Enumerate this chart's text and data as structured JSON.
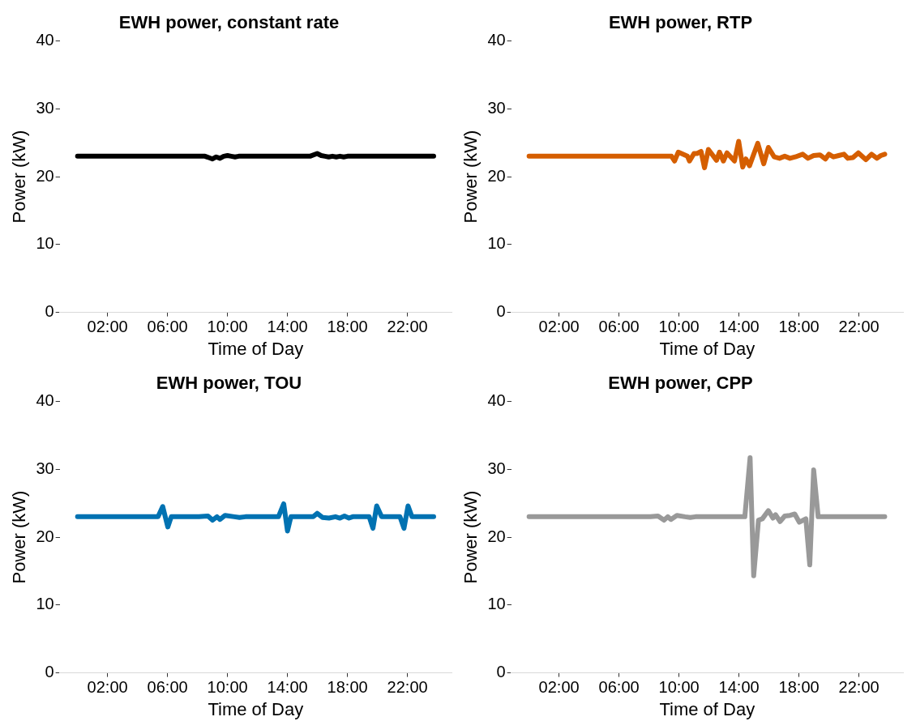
{
  "chart_data": [
    {
      "type": "line",
      "title": "EWH power, constant rate",
      "xlabel": "Time of Day",
      "ylabel": "Power (kW)",
      "xlim": [
        -1.19,
        24.94
      ],
      "xticks": [
        {
          "value": 2,
          "label": "02:00"
        },
        {
          "value": 6,
          "label": "06:00"
        },
        {
          "value": 10,
          "label": "10:00"
        },
        {
          "value": 14,
          "label": "14:00"
        },
        {
          "value": 18,
          "label": "18:00"
        },
        {
          "value": 22,
          "label": "22:00"
        }
      ],
      "ylim": [
        0,
        40
      ],
      "yticks": [
        0,
        10,
        20,
        30,
        40
      ],
      "marker": "none",
      "line_style": "solid",
      "series": [
        {
          "color": "#000000",
          "x": [
            0,
            8.25,
            8.5,
            8.75,
            9,
            9.25,
            9.5,
            9.75,
            10,
            10.25,
            10.5,
            10.75,
            15.5,
            15.98,
            16.25,
            16.5,
            16.75,
            17,
            17.25,
            17.5,
            17.75,
            18,
            23.75
          ],
          "values": [
            23,
            23,
            23,
            22.8,
            22.6,
            22.9,
            22.7,
            23,
            23.1,
            23,
            22.9,
            23,
            23,
            23.4,
            23.1,
            23,
            22.9,
            23,
            22.9,
            23,
            22.9,
            23,
            23
          ]
        }
      ]
    },
    {
      "type": "line",
      "title": "EWH power, RTP",
      "xlabel": "Time of Day",
      "ylabel": "Power (kW)",
      "xlim": [
        -1.19,
        24.94
      ],
      "xticks": [
        {
          "value": 2,
          "label": "02:00"
        },
        {
          "value": 6,
          "label": "06:00"
        },
        {
          "value": 10,
          "label": "10:00"
        },
        {
          "value": 14,
          "label": "14:00"
        },
        {
          "value": 18,
          "label": "18:00"
        },
        {
          "value": 22,
          "label": "22:00"
        }
      ],
      "ylim": [
        0,
        40
      ],
      "yticks": [
        0,
        10,
        20,
        30,
        40
      ],
      "marker": "none",
      "line_style": "solid",
      "series": [
        {
          "color": "#d55e00",
          "x": [
            0,
            9.5,
            9.7,
            9.95,
            10.56,
            10.7,
            11,
            11.2,
            11.47,
            11.7,
            11.96,
            12.5,
            12.7,
            12.96,
            13.2,
            13.7,
            13.98,
            14.25,
            14.46,
            14.7,
            15.25,
            15.65,
            15.96,
            16.35,
            16.7,
            17.05,
            17.4,
            17.75,
            18.25,
            18.6,
            18.98,
            19.4,
            19.77,
            20,
            20.3,
            20.65,
            21,
            21.26,
            21.6,
            21.96,
            22.46,
            22.84,
            23.2,
            23.46,
            23.72
          ],
          "values": [
            23,
            23,
            22.3,
            23.6,
            23,
            22.3,
            23.4,
            23.4,
            23.7,
            21.3,
            24,
            22.4,
            23.6,
            22.3,
            23.5,
            22.3,
            25.2,
            21.4,
            22.6,
            21.6,
            24.9,
            21.9,
            24.3,
            22.9,
            22.7,
            23,
            22.7,
            22.9,
            23.3,
            22.7,
            23.1,
            23.2,
            22.6,
            23.3,
            22.9,
            23.1,
            23.3,
            22.7,
            22.8,
            23.5,
            22.5,
            23.3,
            22.7,
            23.1,
            23.3
          ]
        }
      ]
    },
    {
      "type": "line",
      "title": "EWH power, TOU",
      "xlabel": "Time of Day",
      "ylabel": "Power (kW)",
      "xlim": [
        -1.19,
        24.94
      ],
      "xticks": [
        {
          "value": 2,
          "label": "02:00"
        },
        {
          "value": 6,
          "label": "06:00"
        },
        {
          "value": 10,
          "label": "10:00"
        },
        {
          "value": 14,
          "label": "14:00"
        },
        {
          "value": 18,
          "label": "18:00"
        },
        {
          "value": 22,
          "label": "22:00"
        }
      ],
      "ylim": [
        0,
        40
      ],
      "yticks": [
        0,
        10,
        20,
        30,
        40
      ],
      "marker": "none",
      "line_style": "solid",
      "series": [
        {
          "color": "#0072b2",
          "x": [
            0,
            5.37,
            5.68,
            6.02,
            6.25,
            8.1,
            8.7,
            9,
            9.3,
            9.5,
            9.84,
            10.46,
            10.8,
            11.2,
            13.4,
            13.75,
            14,
            14.23,
            15.72,
            15.98,
            16.33,
            16.77,
            17.2,
            17.5,
            17.8,
            18.1,
            18.35,
            19.45,
            19.7,
            19.95,
            20.28,
            21.5,
            21.77,
            22.04,
            22.3,
            23.75
          ],
          "values": [
            23,
            23,
            24.5,
            21.5,
            23,
            23,
            23.1,
            22.5,
            23,
            22.6,
            23.2,
            23,
            22.9,
            23,
            23,
            24.9,
            20.9,
            23,
            23,
            23.5,
            22.9,
            22.8,
            23,
            22.8,
            23.1,
            22.8,
            23,
            23,
            21.3,
            24.6,
            23,
            23,
            21.3,
            24.6,
            23,
            23
          ]
        }
      ]
    },
    {
      "type": "line",
      "title": "EWH power, CPP",
      "xlabel": "Time of Day",
      "ylabel": "Power (kW)",
      "xlim": [
        -1.19,
        24.94
      ],
      "xticks": [
        {
          "value": 2,
          "label": "02:00"
        },
        {
          "value": 6,
          "label": "06:00"
        },
        {
          "value": 10,
          "label": "10:00"
        },
        {
          "value": 14,
          "label": "14:00"
        },
        {
          "value": 18,
          "label": "18:00"
        },
        {
          "value": 22,
          "label": "22:00"
        }
      ],
      "ylim": [
        0,
        40
      ],
      "yticks": [
        0,
        10,
        20,
        30,
        40
      ],
      "marker": "none",
      "line_style": "solid",
      "series": [
        {
          "color": "#999999",
          "x": [
            0,
            8.1,
            8.6,
            9,
            9.25,
            9.46,
            9.86,
            10.4,
            10.75,
            11.1,
            14.39,
            14.74,
            14.98,
            15.3,
            15.56,
            15.96,
            16.26,
            16.44,
            16.74,
            17.05,
            17.4,
            17.72,
            18.02,
            18.46,
            18.72,
            18.98,
            19.28,
            23.72
          ],
          "values": [
            23,
            23,
            23.1,
            22.5,
            23,
            22.6,
            23.2,
            23,
            22.9,
            23,
            23,
            31.7,
            14.3,
            22.5,
            22.7,
            23.9,
            22.8,
            23.3,
            22.3,
            23.1,
            23.2,
            23.4,
            22.2,
            22.7,
            15.9,
            29.9,
            23,
            23
          ]
        }
      ]
    }
  ]
}
